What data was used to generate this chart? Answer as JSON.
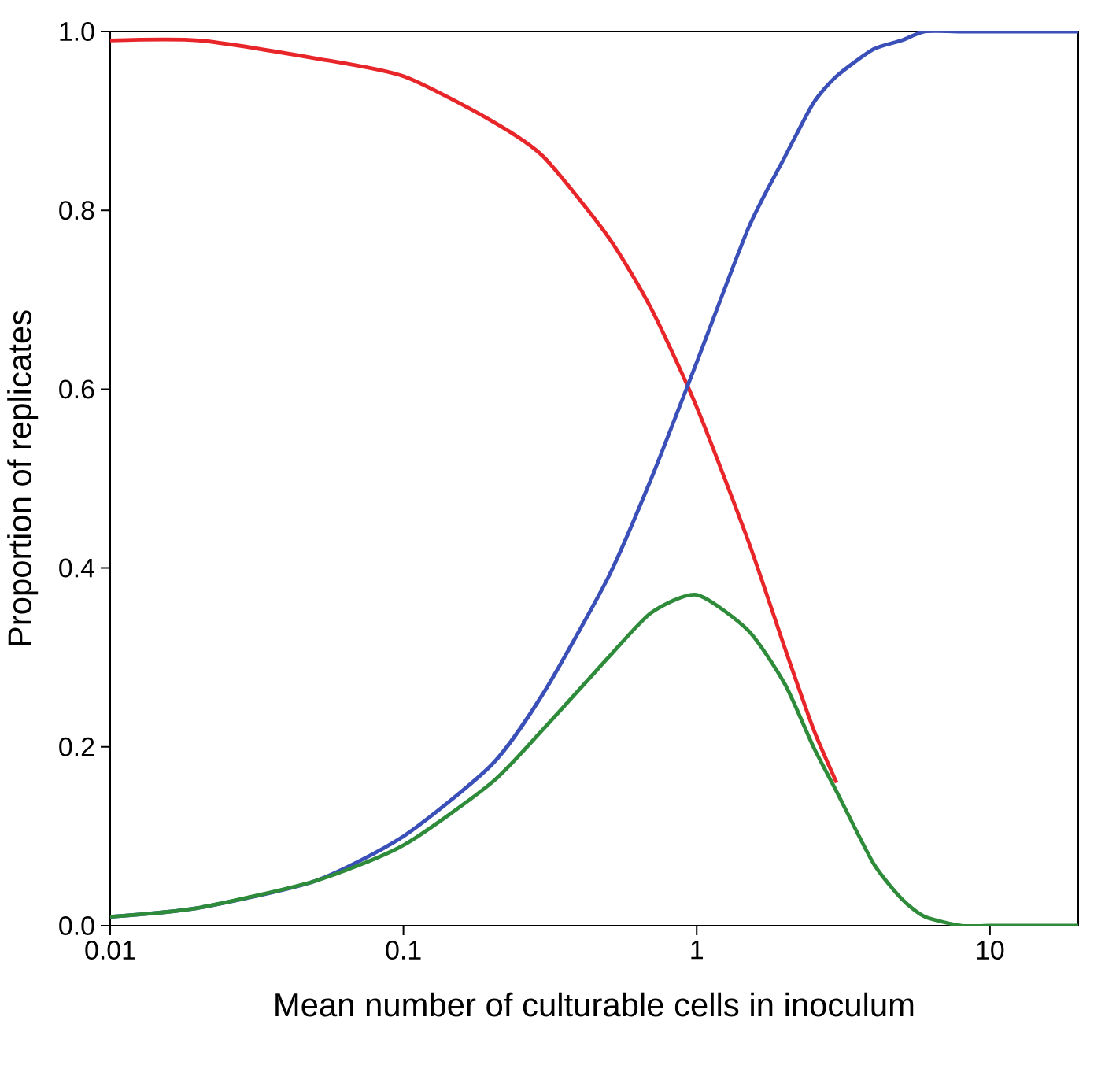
{
  "chart_data": {
    "type": "line",
    "xlabel": "Mean number of culturable cells in inoculum",
    "ylabel": "Proportion of replicates",
    "x": [
      0.01,
      0.02,
      0.05,
      0.1,
      0.2,
      0.3,
      0.5,
      0.7,
      1,
      1.5,
      2,
      2.5,
      3,
      4,
      5,
      6,
      8,
      10,
      15,
      20
    ],
    "series": [
      {
        "color": "#e8262a",
        "values": [
          0.99,
          0.99,
          0.97,
          0.95,
          0.9,
          0.86,
          0.77,
          0.69,
          0.58,
          0.43,
          0.31,
          0.22,
          0.16,
          null,
          null,
          null,
          null,
          null,
          null,
          null
        ]
      },
      {
        "color": "#3a4fb8",
        "values": [
          0.01,
          0.02,
          0.05,
          0.1,
          0.18,
          0.26,
          0.39,
          0.5,
          0.63,
          0.78,
          0.86,
          0.92,
          0.95,
          0.98,
          0.99,
          1.0,
          1.0,
          1.0,
          1.0,
          1.0
        ]
      },
      {
        "color": "#2e8b3a",
        "values": [
          0.01,
          0.02,
          0.05,
          0.09,
          0.16,
          0.22,
          0.3,
          0.35,
          0.37,
          0.33,
          0.27,
          0.2,
          0.15,
          0.07,
          0.03,
          0.01,
          0.0,
          0.0,
          0.0,
          0.0
        ]
      }
    ],
    "log": "x",
    "xlim": [
      0.01,
      20
    ],
    "ylim": [
      0,
      1
    ],
    "xticks": [
      0.01,
      0.1,
      1,
      10
    ],
    "yticks": [
      {
        "value": 0,
        "label": "0.0"
      },
      {
        "value": 0.2,
        "label": "0.2"
      },
      {
        "value": 0.4,
        "label": "0.4"
      },
      {
        "value": 0.6,
        "label": "0.6"
      },
      {
        "value": 0.8,
        "label": "0.8"
      },
      {
        "value": 1,
        "label": "1.0"
      }
    ],
    "marker": "none",
    "line_style": "solid",
    "grid": false
  }
}
